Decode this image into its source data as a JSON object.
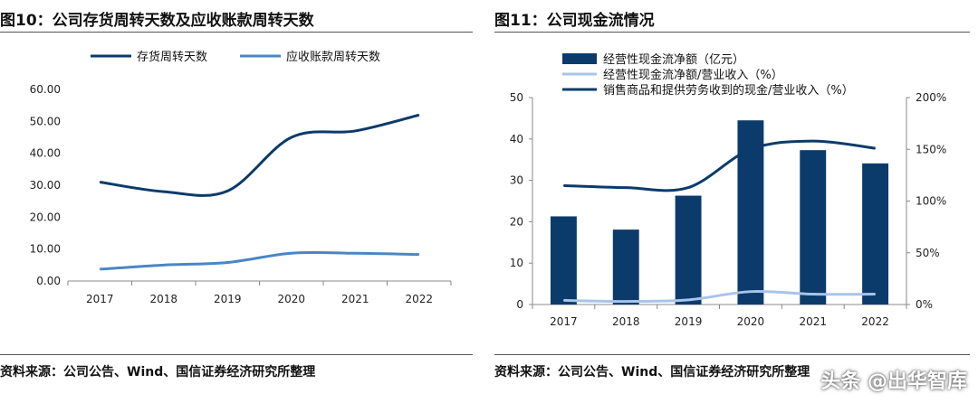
{
  "left": {
    "title": "图10：公司存货周转天数及应收账款周转天数",
    "source": "资料来源：公司公告、Wind、国信证券经济研究所整理"
  },
  "right": {
    "title": "图11：公司现金流情况",
    "source": "资料来源：公司公告、Wind、国信证券经济研究所整理"
  },
  "watermark": "头条 @出华智库",
  "colors": {
    "navy": "#0b3b6b",
    "mid_blue": "#4a86c5",
    "light_blue": "#a8c4ea",
    "rule": "#555555"
  },
  "chart_data": [
    {
      "type": "line",
      "x": [
        "2017",
        "2018",
        "2019",
        "2020",
        "2021",
        "2022"
      ],
      "series": [
        {
          "name": "存货周转天数",
          "values": [
            31.0,
            28.0,
            28.2,
            45.0,
            47.0,
            52.0
          ],
          "color": "#0b3b6b"
        },
        {
          "name": "应收账款周转天数",
          "values": [
            3.7,
            5.0,
            5.8,
            8.7,
            8.7,
            8.3
          ],
          "color": "#4a86c5"
        }
      ],
      "ylim": [
        0,
        60
      ],
      "yticks": [
        "0.00",
        "10.00",
        "20.00",
        "30.00",
        "40.00",
        "50.00",
        "60.00"
      ],
      "legend": "top",
      "grid": false
    },
    {
      "type": "bar",
      "categories": [
        "2017",
        "2018",
        "2019",
        "2020",
        "2021",
        "2022"
      ],
      "series": [
        {
          "name": "经营性现金流净额（亿元）",
          "kind": "bar",
          "axis": "left",
          "values": [
            21.3,
            18.1,
            26.3,
            44.5,
            37.3,
            34.1
          ],
          "color": "#0b3b6b"
        },
        {
          "name": "经营性现金流净额/营业收入（%）",
          "kind": "line",
          "axis": "right",
          "values": [
            4.0,
            3.0,
            4.5,
            12.5,
            10.0,
            10.0
          ],
          "color": "#a8c4ea"
        },
        {
          "name": "销售商品和提供劳务收到的现金/营业收入（%）",
          "kind": "line",
          "axis": "right",
          "values": [
            115.0,
            113.0,
            113.0,
            150.0,
            158.0,
            151.0
          ],
          "color": "#0b3b6b"
        }
      ],
      "ylim": [
        0,
        50
      ],
      "yticks": [
        "0",
        "10",
        "20",
        "30",
        "40",
        "50"
      ],
      "y2lim": [
        0,
        200
      ],
      "y2ticks": [
        "0%",
        "50%",
        "100%",
        "150%",
        "200%"
      ],
      "legend": "top-left",
      "grid": false
    }
  ]
}
